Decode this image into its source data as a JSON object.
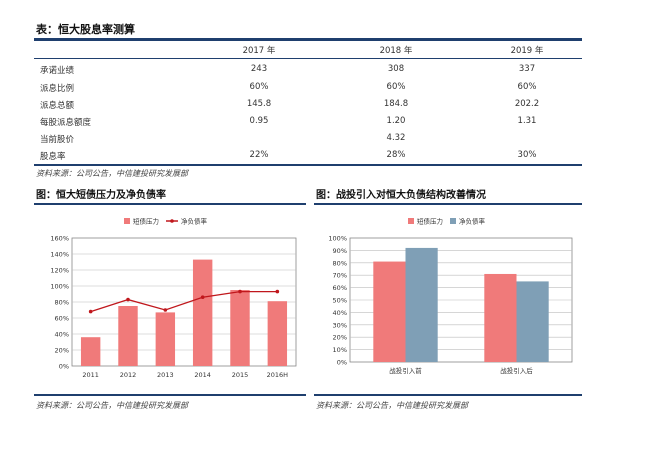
{
  "table": {
    "title": "表：恒大股息率测算",
    "headers": [
      "2017 年",
      "2018 年",
      "2019 年"
    ],
    "rows": [
      {
        "label": "承诺业绩",
        "cells": [
          "243",
          "308",
          "337"
        ]
      },
      {
        "label": "派息比例",
        "cells": [
          "60%",
          "60%",
          "60%"
        ]
      },
      {
        "label": "派息总额",
        "cells": [
          "145.8",
          "184.8",
          "202.2"
        ]
      },
      {
        "label": "每股派息额度",
        "cells": [
          "0.95",
          "1.20",
          "1.31"
        ]
      },
      {
        "label": "当前股价",
        "cells": [
          "",
          "4.32",
          ""
        ]
      },
      {
        "label": "股息率",
        "cells": [
          "22%",
          "28%",
          "30%"
        ]
      }
    ],
    "source": "资料来源：公司公告，中信建投研究发展部"
  },
  "left_panel": {
    "title": "图：恒大短债压力及净负债率",
    "source": "资料来源：公司公告，中信建投研究发展部"
  },
  "right_panel": {
    "title": "图：战投引入对恒大负债结构改善情况",
    "source": "资料来源：公司公告，中信建投研究发展部"
  },
  "chart_data": [
    {
      "type": "bar",
      "categories": [
        "2011",
        "2012",
        "2013",
        "2014",
        "2015",
        "2016H"
      ],
      "series": [
        {
          "name": "短债压力",
          "kind": "bar",
          "color": "#f07a7a",
          "values": [
            36,
            75,
            67,
            133,
            95,
            81
          ]
        },
        {
          "name": "净负债率",
          "kind": "line",
          "color": "#c0171c",
          "values": [
            68,
            83,
            70,
            86,
            93,
            93
          ]
        }
      ],
      "yticks": [
        "0%",
        "20%",
        "40%",
        "60%",
        "80%",
        "100%",
        "120%",
        "140%",
        "160%"
      ],
      "ylim": [
        0,
        160
      ],
      "legend": "top",
      "grid": true
    },
    {
      "type": "bar",
      "categories": [
        "战投引入前",
        "战投引入后"
      ],
      "series": [
        {
          "name": "短债压力",
          "color": "#f07a7a",
          "values": [
            81,
            71
          ]
        },
        {
          "name": "净负债率",
          "color": "#7f9fb6",
          "values": [
            92,
            65
          ]
        }
      ],
      "yticks": [
        "0%",
        "10%",
        "20%",
        "30%",
        "40%",
        "50%",
        "60%",
        "70%",
        "80%",
        "90%",
        "100%"
      ],
      "ylim": [
        0,
        100
      ],
      "legend": "top",
      "grid": true
    }
  ]
}
